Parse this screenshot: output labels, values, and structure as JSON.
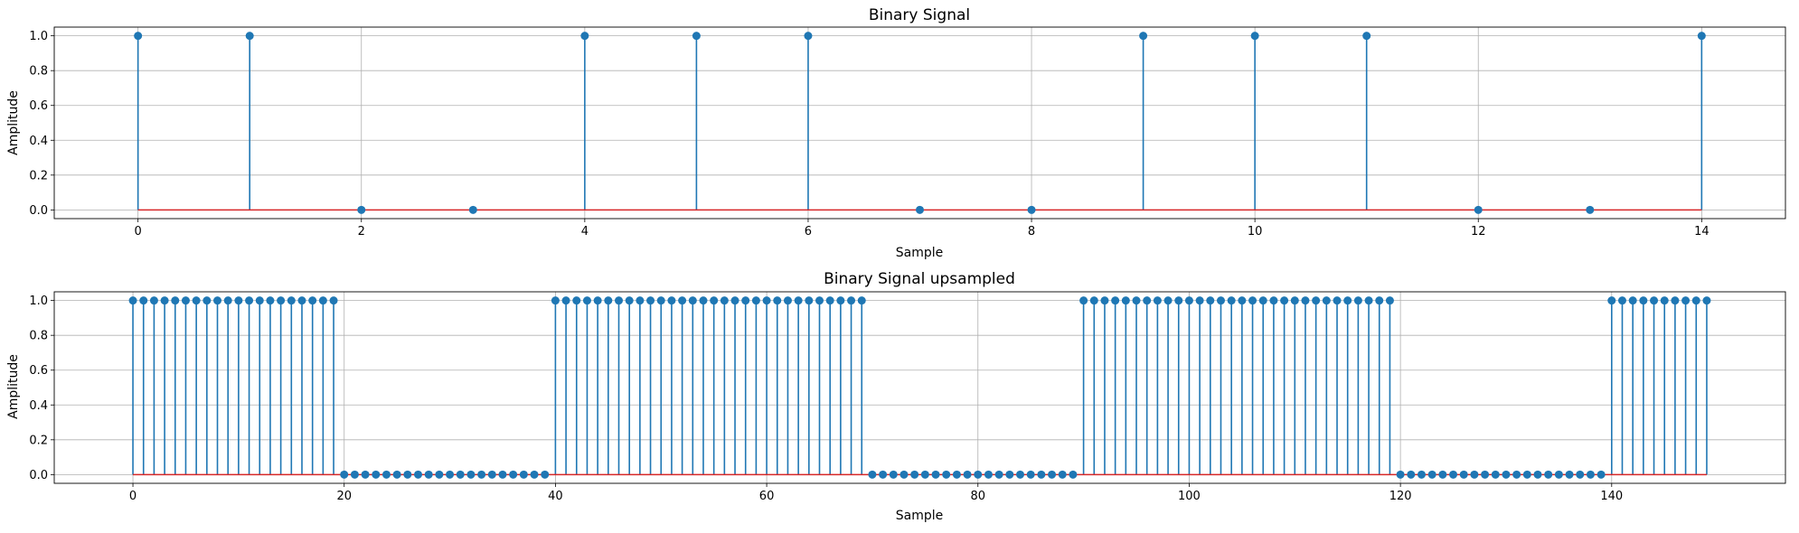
{
  "chart_data": [
    {
      "type": "stem",
      "title": "Binary Signal",
      "xlabel": "Sample",
      "ylabel": "Amplitude",
      "xlim": [
        -0.75,
        14.75
      ],
      "ylim": [
        -0.05,
        1.05
      ],
      "xticks": [
        0,
        2,
        4,
        6,
        8,
        10,
        12,
        14
      ],
      "yticks": [
        "0.0",
        "0.2",
        "0.4",
        "0.6",
        "0.8",
        "1.0"
      ],
      "grid": true,
      "x": [
        0,
        1,
        2,
        3,
        4,
        5,
        6,
        7,
        8,
        9,
        10,
        11,
        12,
        13,
        14
      ],
      "values": [
        1,
        1,
        0,
        0,
        1,
        1,
        1,
        0,
        0,
        1,
        1,
        1,
        0,
        0,
        1
      ]
    },
    {
      "type": "stem",
      "title": "Binary Signal upsampled",
      "xlabel": "Sample",
      "ylabel": "Amplitude",
      "xlim": [
        -7.45,
        156.45
      ],
      "ylim": [
        -0.05,
        1.05
      ],
      "xticks": [
        0,
        20,
        40,
        60,
        80,
        100,
        120,
        140
      ],
      "yticks": [
        "0.0",
        "0.2",
        "0.4",
        "0.6",
        "0.8",
        "1.0"
      ],
      "grid": true,
      "upsample_factor": 10,
      "length": 150,
      "source_values": [
        1,
        1,
        0,
        0,
        1,
        1,
        1,
        0,
        0,
        1,
        1,
        1,
        0,
        0,
        1
      ]
    }
  ],
  "colors": {
    "stem": "#1f77b4",
    "marker": "#1f77b4",
    "baseline": "#d62728",
    "grid": "#b0b0b0",
    "axes": "#000000"
  }
}
